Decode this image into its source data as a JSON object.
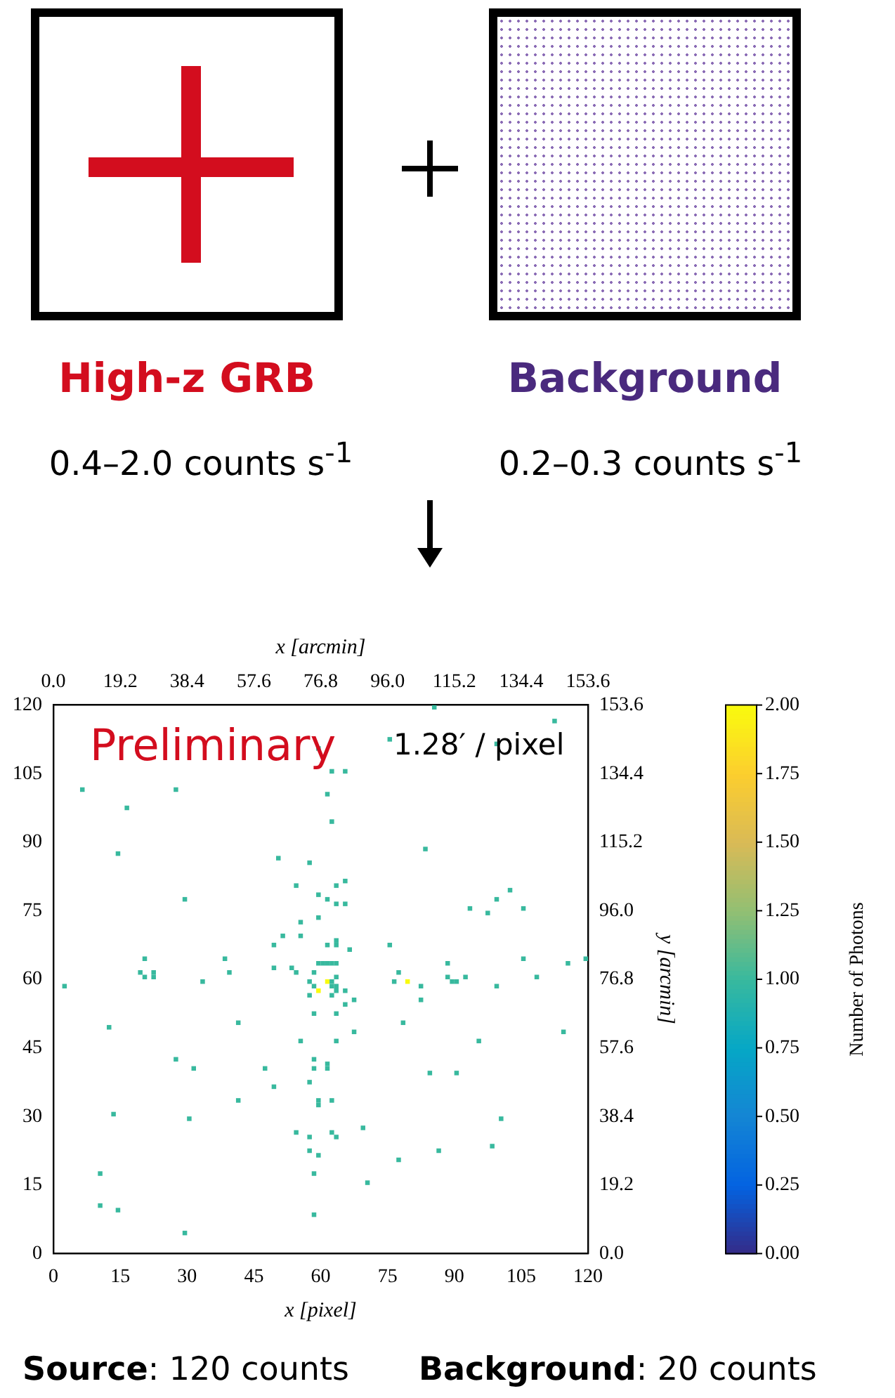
{
  "chart_data": {
    "type": "scatter",
    "xlabel": "x [pixel]",
    "x2label": "x [arcmin]",
    "y2label": "y [arcmin]",
    "clabel": "Number of Photons",
    "annotations": [
      "High-z GRB",
      "0.4–2.0 counts s$^{-1}$",
      "Background",
      "0.2–0.3 counts s$^{-1}$",
      "Preliminary",
      "1.28′ / pixel",
      "Source: 120 counts",
      "Background: 20 counts"
    ],
    "marker": "square",
    "grid": false,
    "legend": false,
    "xlim": [
      0,
      120
    ],
    "xticks": [
      0,
      15,
      30,
      45,
      60,
      75,
      90,
      105,
      120
    ],
    "ylim": [
      0,
      120
    ],
    "yticks": [
      0,
      15,
      30,
      45,
      60,
      75,
      90,
      105,
      120
    ],
    "x2lim": [
      0,
      153.6
    ],
    "x2ticks": [
      {
        "value": 0,
        "label": "0.0"
      },
      {
        "value": 19.2,
        "label": "19.2"
      },
      {
        "value": 38.4,
        "label": "38.4"
      },
      {
        "value": 57.6,
        "label": "57.6"
      },
      {
        "value": 76.8,
        "label": "76.8"
      },
      {
        "value": 96,
        "label": "96.0"
      },
      {
        "value": 115.2,
        "label": "115.2"
      },
      {
        "value": 134.4,
        "label": "134.4"
      },
      {
        "value": 153.6,
        "label": "153.6"
      }
    ],
    "y2lim": [
      0,
      153.6
    ],
    "y2ticks": [
      {
        "value": 0,
        "label": "0.0"
      },
      {
        "value": 19.2,
        "label": "19.2"
      },
      {
        "value": 38.4,
        "label": "38.4"
      },
      {
        "value": 57.6,
        "label": "57.6"
      },
      {
        "value": 76.8,
        "label": "76.8"
      },
      {
        "value": 96,
        "label": "96.0"
      },
      {
        "value": 115.2,
        "label": "115.2"
      },
      {
        "value": 134.4,
        "label": "134.4"
      },
      {
        "value": 153.6,
        "label": "153.6"
      }
    ],
    "clim": [
      0,
      2
    ],
    "cticks": [
      {
        "value": 0,
        "label": "0.00"
      },
      {
        "value": 0.25,
        "label": "0.25"
      },
      {
        "value": 0.5,
        "label": "0.50"
      },
      {
        "value": 0.75,
        "label": "0.75"
      },
      {
        "value": 1,
        "label": "1.00"
      },
      {
        "value": 1.25,
        "label": "1.25"
      },
      {
        "value": 1.5,
        "label": "1.50"
      },
      {
        "value": 1.75,
        "label": "1.75"
      },
      {
        "value": 2,
        "label": "2.00"
      }
    ],
    "x": [
      6.5,
      27.5,
      16.5,
      14.5,
      29.5,
      50.5,
      57.5,
      54.5,
      59.5,
      59.5,
      55.5,
      51.5,
      55.5,
      49.5,
      59.5,
      20.5,
      38.5,
      19.5,
      22.5,
      39.5,
      49.5,
      53.5,
      54.5,
      58.5,
      20.5,
      22.5,
      2.5,
      33.5,
      57.5,
      58.5,
      59.5,
      57.5,
      58.5,
      12.5,
      41.5,
      55.5,
      27.5,
      31.5,
      47.5,
      58.5,
      58.5,
      57.5,
      49.5,
      41.5,
      59.5,
      59.5,
      13.5,
      30.5,
      54.5,
      57.5,
      57.5,
      59.5,
      10.5,
      58.5,
      10.5,
      14.5,
      58.5,
      29.5,
      85.5,
      112.5,
      75.5,
      99.5,
      62.5,
      65.5,
      61.5,
      62.5,
      83.5,
      65.5,
      63.5,
      61.5,
      63.5,
      65.5,
      102.5,
      99.5,
      93.5,
      97.5,
      105.5,
      61.5,
      63.5,
      63.5,
      66.5,
      75.5,
      59.5,
      60.5,
      61.5,
      62.5,
      63.5,
      88.5,
      105.5,
      115.5,
      119.5,
      77.5,
      63.5,
      92.5,
      108.5,
      61.5,
      62.5,
      62.5,
      63.5,
      63.5,
      65.5,
      62.5,
      65.5,
      67.5,
      63.5,
      67.5,
      63.5,
      76.5,
      79.5,
      82.5,
      82.5,
      88.5,
      89.5,
      90.5,
      99.5,
      78.5,
      95.5,
      114.5,
      61.5,
      61.5,
      84.5,
      90.5,
      62.5,
      100.5,
      69.5,
      62.5,
      63.5,
      86.5,
      98.5,
      77.5,
      70.5
    ],
    "values": [
      101.5,
      101.5,
      97.5,
      87.5,
      77.5,
      86.5,
      85.5,
      80.5,
      78.5,
      73.5,
      72.5,
      69.5,
      69.5,
      67.5,
      110.5,
      64.5,
      64.5,
      61.5,
      61.5,
      61.5,
      62.5,
      62.5,
      61.5,
      61.5,
      60.5,
      60.5,
      58.5,
      59.5,
      59.5,
      58.5,
      57.5,
      56.5,
      52.5,
      49.5,
      50.5,
      46.5,
      42.5,
      40.5,
      40.5,
      42.5,
      40.5,
      37.5,
      36.5,
      33.5,
      33.5,
      32.5,
      30.5,
      29.5,
      26.5,
      25.5,
      22.5,
      21.5,
      17.5,
      17.5,
      10.5,
      9.5,
      8.5,
      4.5,
      119.5,
      116.5,
      112.5,
      111.5,
      105.5,
      105.5,
      100.5,
      94.5,
      88.5,
      81.5,
      80.5,
      77.5,
      76.5,
      76.5,
      79.5,
      77.5,
      75.5,
      74.5,
      75.5,
      67.5,
      68.5,
      67.5,
      66.5,
      67.5,
      63.5,
      63.5,
      63.5,
      63.5,
      63.5,
      63.5,
      64.5,
      63.5,
      64.5,
      61.5,
      60.5,
      60.5,
      60.5,
      59.5,
      59.5,
      58.5,
      58.5,
      57.5,
      57.5,
      56.5,
      54.5,
      55.5,
      52.5,
      48.5,
      46.5,
      59.5,
      59.5,
      58.5,
      55.5,
      60.5,
      59.5,
      59.5,
      58.5,
      50.5,
      46.5,
      48.5,
      41.5,
      40.5,
      39.5,
      39.5,
      33.5,
      29.5,
      27.5,
      26.5,
      25.5,
      22.5,
      23.5,
      20.5,
      15.5
    ],
    "cvalues": [
      1,
      1,
      1,
      1,
      1,
      1,
      1,
      1,
      1,
      1,
      1,
      1,
      1,
      1,
      1,
      1,
      1,
      1,
      1,
      1,
      1,
      1,
      1,
      1,
      1,
      1,
      1,
      1,
      1,
      1,
      2,
      1,
      1,
      1,
      1,
      1,
      1,
      1,
      1,
      1,
      1,
      1,
      1,
      1,
      1,
      1,
      1,
      1,
      1,
      1,
      1,
      1,
      1,
      1,
      1,
      1,
      1,
      1,
      1,
      1,
      1,
      1,
      1,
      1,
      1,
      1,
      1,
      1,
      1,
      1,
      1,
      1,
      1,
      1,
      1,
      1,
      1,
      1,
      1,
      1,
      1,
      1,
      1,
      1,
      1,
      1,
      1,
      1,
      1,
      1,
      1,
      1,
      1,
      1,
      1,
      2,
      1,
      1,
      1,
      1,
      1,
      1,
      1,
      1,
      1,
      1,
      1,
      1,
      2,
      1,
      1,
      1,
      1,
      1,
      1,
      1,
      1,
      1,
      1,
      1,
      1,
      1,
      1,
      1,
      1,
      1,
      1,
      1,
      1,
      1,
      1
    ]
  }
}
